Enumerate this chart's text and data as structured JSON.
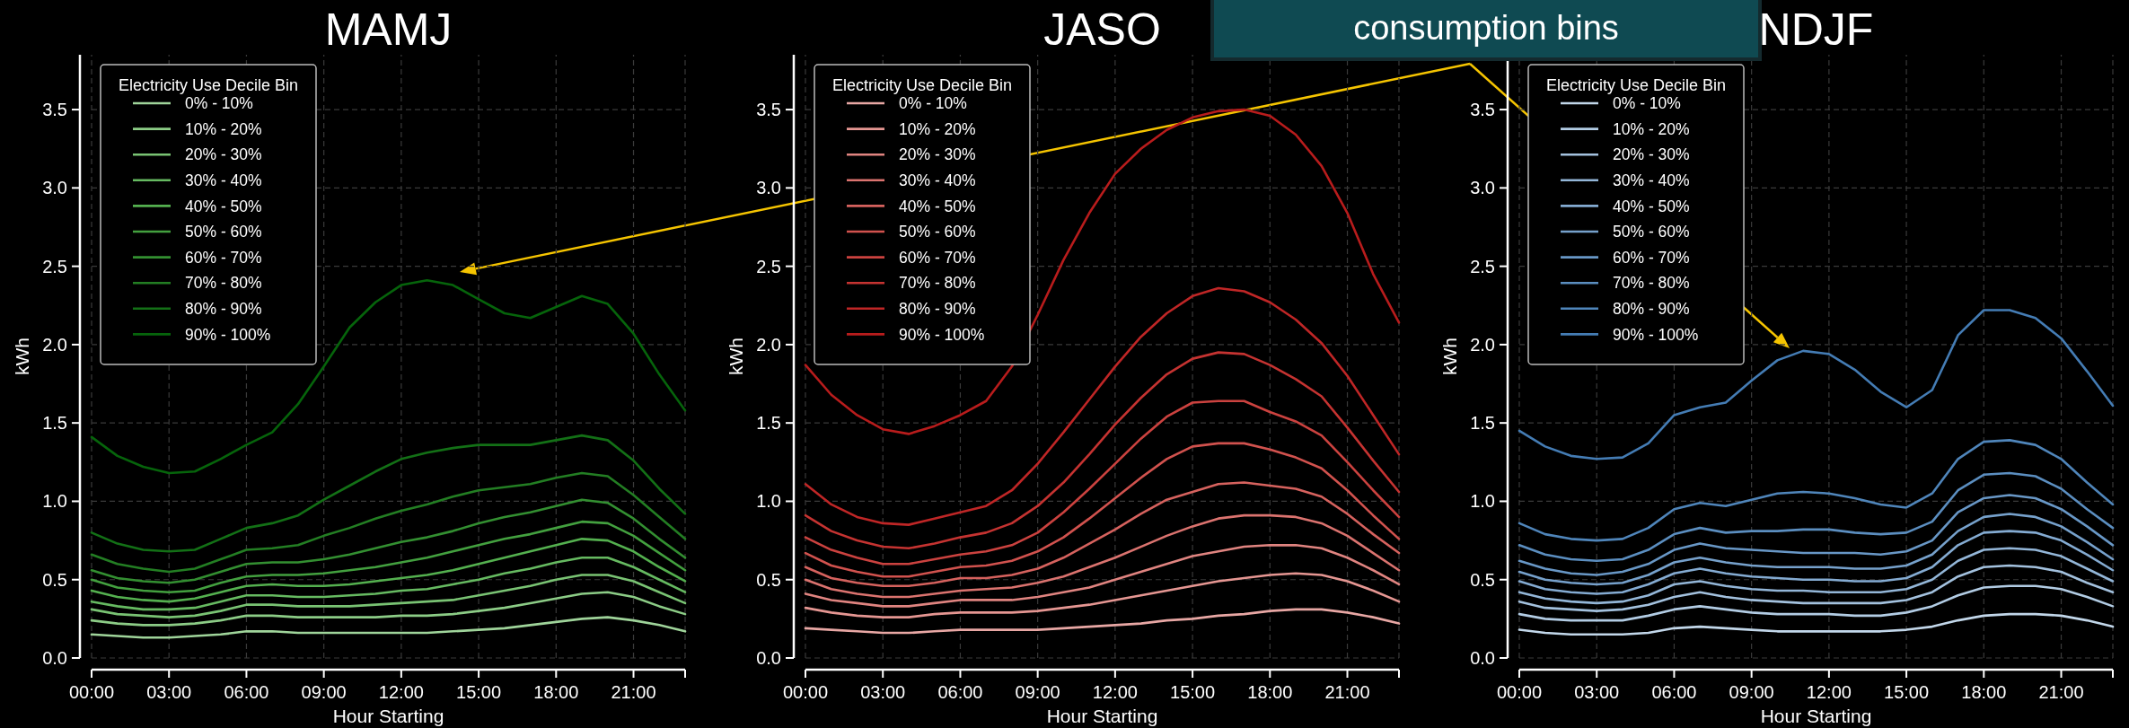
{
  "chart_data": [
    {
      "type": "line",
      "title": "MAMJ",
      "xlabel": "Hour Starting",
      "ylabel": "kWh",
      "legend_title": "Electricity Use Decile Bin",
      "legend": "top left",
      "grid": true,
      "line_style": "solid",
      "x": [
        0,
        1,
        2,
        3,
        4,
        5,
        6,
        7,
        8,
        9,
        10,
        11,
        12,
        13,
        14,
        15,
        16,
        17,
        18,
        19,
        20,
        21,
        22,
        23
      ],
      "xlim": [
        0,
        23
      ],
      "xticks": [
        {
          "value": 0,
          "label": "00:00"
        },
        {
          "value": 3,
          "label": "03:00"
        },
        {
          "value": 6,
          "label": "06:00"
        },
        {
          "value": 9,
          "label": "09:00"
        },
        {
          "value": 12,
          "label": "12:00"
        },
        {
          "value": 15,
          "label": "15:00"
        },
        {
          "value": 18,
          "label": "18:00"
        },
        {
          "value": 21,
          "label": "21:00"
        },
        {
          "value": 23,
          "label": null
        }
      ],
      "ylim": [
        0,
        3.85
      ],
      "yticks": [
        {
          "value": 0,
          "label": "0.0"
        },
        {
          "value": 0.5,
          "label": "0.5"
        },
        {
          "value": 1,
          "label": "1.0"
        },
        {
          "value": 1.5,
          "label": "1.5"
        },
        {
          "value": 2,
          "label": "2.0"
        },
        {
          "value": 2.5,
          "label": "2.5"
        },
        {
          "value": 3,
          "label": "3.0"
        },
        {
          "value": 3.5,
          "label": "3.5"
        }
      ],
      "series": [
        {
          "name": "0% - 10%",
          "color": "#9fd49a",
          "values": [
            0.15,
            0.14,
            0.13,
            0.13,
            0.14,
            0.15,
            0.17,
            0.17,
            0.16,
            0.16,
            0.16,
            0.16,
            0.16,
            0.16,
            0.17,
            0.18,
            0.19,
            0.21,
            0.23,
            0.25,
            0.26,
            0.24,
            0.21,
            0.17
          ]
        },
        {
          "name": "10% - 20%",
          "color": "#8ccc86",
          "values": [
            0.24,
            0.22,
            0.21,
            0.21,
            0.22,
            0.24,
            0.27,
            0.27,
            0.26,
            0.26,
            0.26,
            0.26,
            0.27,
            0.27,
            0.28,
            0.3,
            0.32,
            0.35,
            0.38,
            0.41,
            0.42,
            0.39,
            0.33,
            0.28
          ]
        },
        {
          "name": "20% - 30%",
          "color": "#79c373",
          "values": [
            0.31,
            0.28,
            0.27,
            0.26,
            0.27,
            0.3,
            0.34,
            0.34,
            0.33,
            0.33,
            0.33,
            0.34,
            0.35,
            0.36,
            0.37,
            0.4,
            0.43,
            0.46,
            0.5,
            0.53,
            0.53,
            0.49,
            0.42,
            0.35
          ]
        },
        {
          "name": "30% - 40%",
          "color": "#66ba61",
          "values": [
            0.36,
            0.33,
            0.31,
            0.31,
            0.32,
            0.36,
            0.4,
            0.4,
            0.39,
            0.39,
            0.4,
            0.41,
            0.43,
            0.44,
            0.47,
            0.5,
            0.54,
            0.57,
            0.61,
            0.64,
            0.64,
            0.58,
            0.5,
            0.42
          ]
        },
        {
          "name": "40% - 50%",
          "color": "#54b04f",
          "values": [
            0.43,
            0.39,
            0.37,
            0.36,
            0.38,
            0.42,
            0.46,
            0.47,
            0.46,
            0.46,
            0.47,
            0.49,
            0.51,
            0.53,
            0.56,
            0.6,
            0.64,
            0.68,
            0.72,
            0.76,
            0.75,
            0.68,
            0.58,
            0.49
          ]
        },
        {
          "name": "50% - 60%",
          "color": "#43a03f",
          "values": [
            0.5,
            0.45,
            0.43,
            0.42,
            0.43,
            0.48,
            0.52,
            0.53,
            0.53,
            0.54,
            0.56,
            0.58,
            0.61,
            0.64,
            0.68,
            0.72,
            0.76,
            0.79,
            0.83,
            0.87,
            0.86,
            0.78,
            0.67,
            0.56
          ]
        },
        {
          "name": "60% - 70%",
          "color": "#338f31",
          "values": [
            0.56,
            0.51,
            0.49,
            0.48,
            0.5,
            0.55,
            0.6,
            0.61,
            0.61,
            0.63,
            0.66,
            0.7,
            0.74,
            0.77,
            0.81,
            0.86,
            0.9,
            0.93,
            0.97,
            1.01,
            0.99,
            0.89,
            0.76,
            0.64
          ]
        },
        {
          "name": "70% - 80%",
          "color": "#237e23",
          "values": [
            0.66,
            0.6,
            0.57,
            0.55,
            0.57,
            0.63,
            0.69,
            0.7,
            0.72,
            0.78,
            0.83,
            0.89,
            0.94,
            0.98,
            1.03,
            1.07,
            1.09,
            1.11,
            1.15,
            1.18,
            1.16,
            1.04,
            0.9,
            0.76
          ]
        },
        {
          "name": "80% - 90%",
          "color": "#137016",
          "values": [
            0.8,
            0.73,
            0.69,
            0.68,
            0.69,
            0.76,
            0.83,
            0.86,
            0.91,
            1.01,
            1.1,
            1.19,
            1.27,
            1.31,
            1.34,
            1.36,
            1.36,
            1.36,
            1.39,
            1.42,
            1.39,
            1.26,
            1.08,
            0.92
          ]
        },
        {
          "name": "90% - 100%",
          "color": "#06640b",
          "values": [
            1.41,
            1.29,
            1.22,
            1.18,
            1.19,
            1.27,
            1.36,
            1.44,
            1.62,
            1.86,
            2.11,
            2.27,
            2.38,
            2.41,
            2.38,
            2.29,
            2.2,
            2.17,
            2.24,
            2.31,
            2.26,
            2.07,
            1.81,
            1.58
          ]
        }
      ]
    },
    {
      "type": "line",
      "title": "JASO",
      "xlabel": "Hour Starting",
      "ylabel": "kWh",
      "legend_title": "Electricity Use Decile Bin",
      "legend": "top left",
      "grid": true,
      "line_style": "solid",
      "annotations": [
        "consumption bins"
      ],
      "x": [
        0,
        1,
        2,
        3,
        4,
        5,
        6,
        7,
        8,
        9,
        10,
        11,
        12,
        13,
        14,
        15,
        16,
        17,
        18,
        19,
        20,
        21,
        22,
        23
      ],
      "xlim": [
        0,
        23
      ],
      "xticks": [
        {
          "value": 0,
          "label": "00:00"
        },
        {
          "value": 3,
          "label": "03:00"
        },
        {
          "value": 6,
          "label": "06:00"
        },
        {
          "value": 9,
          "label": "09:00"
        },
        {
          "value": 12,
          "label": "12:00"
        },
        {
          "value": 15,
          "label": "15:00"
        },
        {
          "value": 18,
          "label": "18:00"
        },
        {
          "value": 21,
          "label": "21:00"
        },
        {
          "value": 23,
          "label": null
        }
      ],
      "ylim": [
        0,
        3.85
      ],
      "yticks": [
        {
          "value": 0,
          "label": "0.0"
        },
        {
          "value": 0.5,
          "label": "0.5"
        },
        {
          "value": 1,
          "label": "1.0"
        },
        {
          "value": 1.5,
          "label": "1.5"
        },
        {
          "value": 2,
          "label": "2.0"
        },
        {
          "value": 2.5,
          "label": "2.5"
        },
        {
          "value": 3,
          "label": "3.0"
        },
        {
          "value": 3.5,
          "label": "3.5"
        }
      ],
      "series": [
        {
          "name": "0% - 10%",
          "color": "#e8a7a4",
          "values": [
            0.19,
            0.18,
            0.17,
            0.16,
            0.16,
            0.17,
            0.18,
            0.18,
            0.18,
            0.18,
            0.19,
            0.2,
            0.21,
            0.22,
            0.24,
            0.25,
            0.27,
            0.28,
            0.3,
            0.31,
            0.31,
            0.29,
            0.26,
            0.22
          ]
        },
        {
          "name": "10% - 20%",
          "color": "#e59692",
          "values": [
            0.32,
            0.29,
            0.27,
            0.26,
            0.26,
            0.28,
            0.29,
            0.29,
            0.29,
            0.3,
            0.32,
            0.34,
            0.37,
            0.4,
            0.43,
            0.46,
            0.49,
            0.51,
            0.53,
            0.54,
            0.53,
            0.49,
            0.43,
            0.36
          ]
        },
        {
          "name": "20% - 30%",
          "color": "#e08480",
          "values": [
            0.41,
            0.37,
            0.35,
            0.33,
            0.33,
            0.35,
            0.37,
            0.37,
            0.37,
            0.39,
            0.42,
            0.45,
            0.5,
            0.55,
            0.6,
            0.65,
            0.68,
            0.71,
            0.72,
            0.72,
            0.7,
            0.64,
            0.56,
            0.47
          ]
        },
        {
          "name": "30% - 40%",
          "color": "#db736f",
          "values": [
            0.5,
            0.44,
            0.41,
            0.39,
            0.39,
            0.41,
            0.43,
            0.44,
            0.45,
            0.48,
            0.52,
            0.58,
            0.64,
            0.71,
            0.78,
            0.84,
            0.89,
            0.91,
            0.91,
            0.9,
            0.86,
            0.78,
            0.67,
            0.56
          ]
        },
        {
          "name": "40% - 50%",
          "color": "#d6625e",
          "values": [
            0.58,
            0.51,
            0.48,
            0.46,
            0.46,
            0.48,
            0.51,
            0.51,
            0.53,
            0.57,
            0.64,
            0.73,
            0.82,
            0.92,
            1.01,
            1.06,
            1.11,
            1.12,
            1.1,
            1.08,
            1.03,
            0.92,
            0.79,
            0.67
          ]
        },
        {
          "name": "50% - 60%",
          "color": "#d1524e",
          "values": [
            0.67,
            0.59,
            0.55,
            0.52,
            0.52,
            0.55,
            0.58,
            0.59,
            0.62,
            0.68,
            0.77,
            0.89,
            1.02,
            1.15,
            1.27,
            1.35,
            1.37,
            1.37,
            1.33,
            1.28,
            1.21,
            1.07,
            0.91,
            0.76
          ]
        },
        {
          "name": "60% - 70%",
          "color": "#cb423f",
          "values": [
            0.77,
            0.69,
            0.64,
            0.6,
            0.6,
            0.63,
            0.66,
            0.68,
            0.72,
            0.8,
            0.93,
            1.08,
            1.24,
            1.4,
            1.54,
            1.63,
            1.64,
            1.64,
            1.57,
            1.51,
            1.42,
            1.25,
            1.07,
            0.9
          ]
        },
        {
          "name": "70% - 80%",
          "color": "#c53331",
          "values": [
            0.91,
            0.81,
            0.75,
            0.71,
            0.7,
            0.73,
            0.77,
            0.8,
            0.86,
            0.97,
            1.12,
            1.3,
            1.49,
            1.66,
            1.81,
            1.91,
            1.95,
            1.94,
            1.87,
            1.78,
            1.67,
            1.47,
            1.26,
            1.06
          ]
        },
        {
          "name": "80% - 90%",
          "color": "#bf2626",
          "values": [
            1.11,
            0.98,
            0.9,
            0.86,
            0.85,
            0.89,
            0.93,
            0.97,
            1.07,
            1.24,
            1.44,
            1.65,
            1.86,
            2.05,
            2.2,
            2.31,
            2.36,
            2.34,
            2.27,
            2.16,
            2.01,
            1.8,
            1.55,
            1.3
          ]
        },
        {
          "name": "90% - 100%",
          "color": "#b81c1c",
          "values": [
            1.87,
            1.68,
            1.55,
            1.46,
            1.43,
            1.48,
            1.55,
            1.64,
            1.86,
            2.19,
            2.54,
            2.84,
            3.09,
            3.25,
            3.37,
            3.45,
            3.49,
            3.5,
            3.46,
            3.34,
            3.14,
            2.84,
            2.45,
            2.14
          ]
        }
      ]
    },
    {
      "type": "line",
      "title": "NDJF",
      "xlabel": "Hour Starting",
      "ylabel": "kWh",
      "legend_title": "Electricity Use Decile Bin",
      "legend": "top left",
      "grid": true,
      "line_style": "solid",
      "x": [
        0,
        1,
        2,
        3,
        4,
        5,
        6,
        7,
        8,
        9,
        10,
        11,
        12,
        13,
        14,
        15,
        16,
        17,
        18,
        19,
        20,
        21,
        22,
        23
      ],
      "xlim": [
        0,
        23
      ],
      "xticks": [
        {
          "value": 0,
          "label": "00:00"
        },
        {
          "value": 3,
          "label": "03:00"
        },
        {
          "value": 6,
          "label": "06:00"
        },
        {
          "value": 9,
          "label": "09:00"
        },
        {
          "value": 12,
          "label": "12:00"
        },
        {
          "value": 15,
          "label": "15:00"
        },
        {
          "value": 18,
          "label": "18:00"
        },
        {
          "value": 21,
          "label": "21:00"
        },
        {
          "value": 23,
          "label": null
        }
      ],
      "ylim": [
        0,
        3.85
      ],
      "yticks": [
        {
          "value": 0,
          "label": "0.0"
        },
        {
          "value": 0.5,
          "label": "0.5"
        },
        {
          "value": 1,
          "label": "1.0"
        },
        {
          "value": 1.5,
          "label": "1.5"
        },
        {
          "value": 2,
          "label": "2.0"
        },
        {
          "value": 2.5,
          "label": "2.5"
        },
        {
          "value": 3,
          "label": "3.0"
        },
        {
          "value": 3.5,
          "label": "3.5"
        }
      ],
      "series": [
        {
          "name": "0% - 10%",
          "color": "#c2d7ea",
          "values": [
            0.18,
            0.16,
            0.15,
            0.15,
            0.15,
            0.16,
            0.19,
            0.2,
            0.19,
            0.18,
            0.17,
            0.17,
            0.17,
            0.17,
            0.17,
            0.18,
            0.2,
            0.24,
            0.27,
            0.28,
            0.28,
            0.27,
            0.24,
            0.2
          ]
        },
        {
          "name": "10% - 20%",
          "color": "#b2cce4",
          "values": [
            0.28,
            0.25,
            0.24,
            0.24,
            0.24,
            0.27,
            0.31,
            0.33,
            0.31,
            0.29,
            0.28,
            0.28,
            0.28,
            0.27,
            0.27,
            0.29,
            0.33,
            0.4,
            0.45,
            0.46,
            0.46,
            0.44,
            0.39,
            0.33
          ]
        },
        {
          "name": "20% - 30%",
          "color": "#a3c1de",
          "values": [
            0.36,
            0.32,
            0.31,
            0.3,
            0.31,
            0.34,
            0.39,
            0.42,
            0.39,
            0.37,
            0.36,
            0.35,
            0.35,
            0.35,
            0.35,
            0.37,
            0.42,
            0.52,
            0.58,
            0.59,
            0.58,
            0.55,
            0.48,
            0.42
          ]
        },
        {
          "name": "30% - 40%",
          "color": "#93b6d8",
          "values": [
            0.42,
            0.38,
            0.36,
            0.35,
            0.36,
            0.4,
            0.47,
            0.49,
            0.46,
            0.44,
            0.43,
            0.43,
            0.42,
            0.42,
            0.42,
            0.44,
            0.5,
            0.62,
            0.69,
            0.7,
            0.69,
            0.65,
            0.57,
            0.49
          ]
        },
        {
          "name": "40% - 50%",
          "color": "#84abd2",
          "values": [
            0.49,
            0.44,
            0.42,
            0.41,
            0.42,
            0.47,
            0.54,
            0.57,
            0.54,
            0.52,
            0.51,
            0.5,
            0.5,
            0.49,
            0.49,
            0.51,
            0.58,
            0.72,
            0.8,
            0.81,
            0.8,
            0.75,
            0.66,
            0.56
          ]
        },
        {
          "name": "50% - 60%",
          "color": "#76a1cc",
          "values": [
            0.55,
            0.5,
            0.48,
            0.47,
            0.48,
            0.53,
            0.61,
            0.64,
            0.61,
            0.59,
            0.58,
            0.58,
            0.58,
            0.57,
            0.57,
            0.59,
            0.66,
            0.81,
            0.9,
            0.92,
            0.9,
            0.84,
            0.74,
            0.63
          ]
        },
        {
          "name": "60% - 70%",
          "color": "#6897c6",
          "values": [
            0.62,
            0.57,
            0.54,
            0.53,
            0.55,
            0.6,
            0.69,
            0.73,
            0.7,
            0.69,
            0.68,
            0.67,
            0.67,
            0.67,
            0.66,
            0.68,
            0.75,
            0.93,
            1.02,
            1.04,
            1.02,
            0.95,
            0.84,
            0.72
          ]
        },
        {
          "name": "70% - 80%",
          "color": "#5b8ec0",
          "values": [
            0.72,
            0.66,
            0.63,
            0.62,
            0.63,
            0.69,
            0.79,
            0.83,
            0.8,
            0.81,
            0.81,
            0.82,
            0.82,
            0.8,
            0.79,
            0.8,
            0.87,
            1.07,
            1.17,
            1.18,
            1.16,
            1.08,
            0.95,
            0.83
          ]
        },
        {
          "name": "80% - 90%",
          "color": "#4f85ba",
          "values": [
            0.86,
            0.79,
            0.76,
            0.75,
            0.76,
            0.83,
            0.95,
            0.99,
            0.97,
            1.01,
            1.05,
            1.06,
            1.05,
            1.02,
            0.98,
            0.96,
            1.05,
            1.27,
            1.38,
            1.39,
            1.36,
            1.27,
            1.12,
            0.98
          ]
        },
        {
          "name": "90% - 100%",
          "color": "#447cb4",
          "values": [
            1.45,
            1.35,
            1.29,
            1.27,
            1.28,
            1.37,
            1.55,
            1.6,
            1.63,
            1.77,
            1.9,
            1.96,
            1.94,
            1.84,
            1.7,
            1.6,
            1.71,
            2.06,
            2.22,
            2.22,
            2.17,
            2.04,
            1.83,
            1.61
          ]
        }
      ]
    }
  ]
}
